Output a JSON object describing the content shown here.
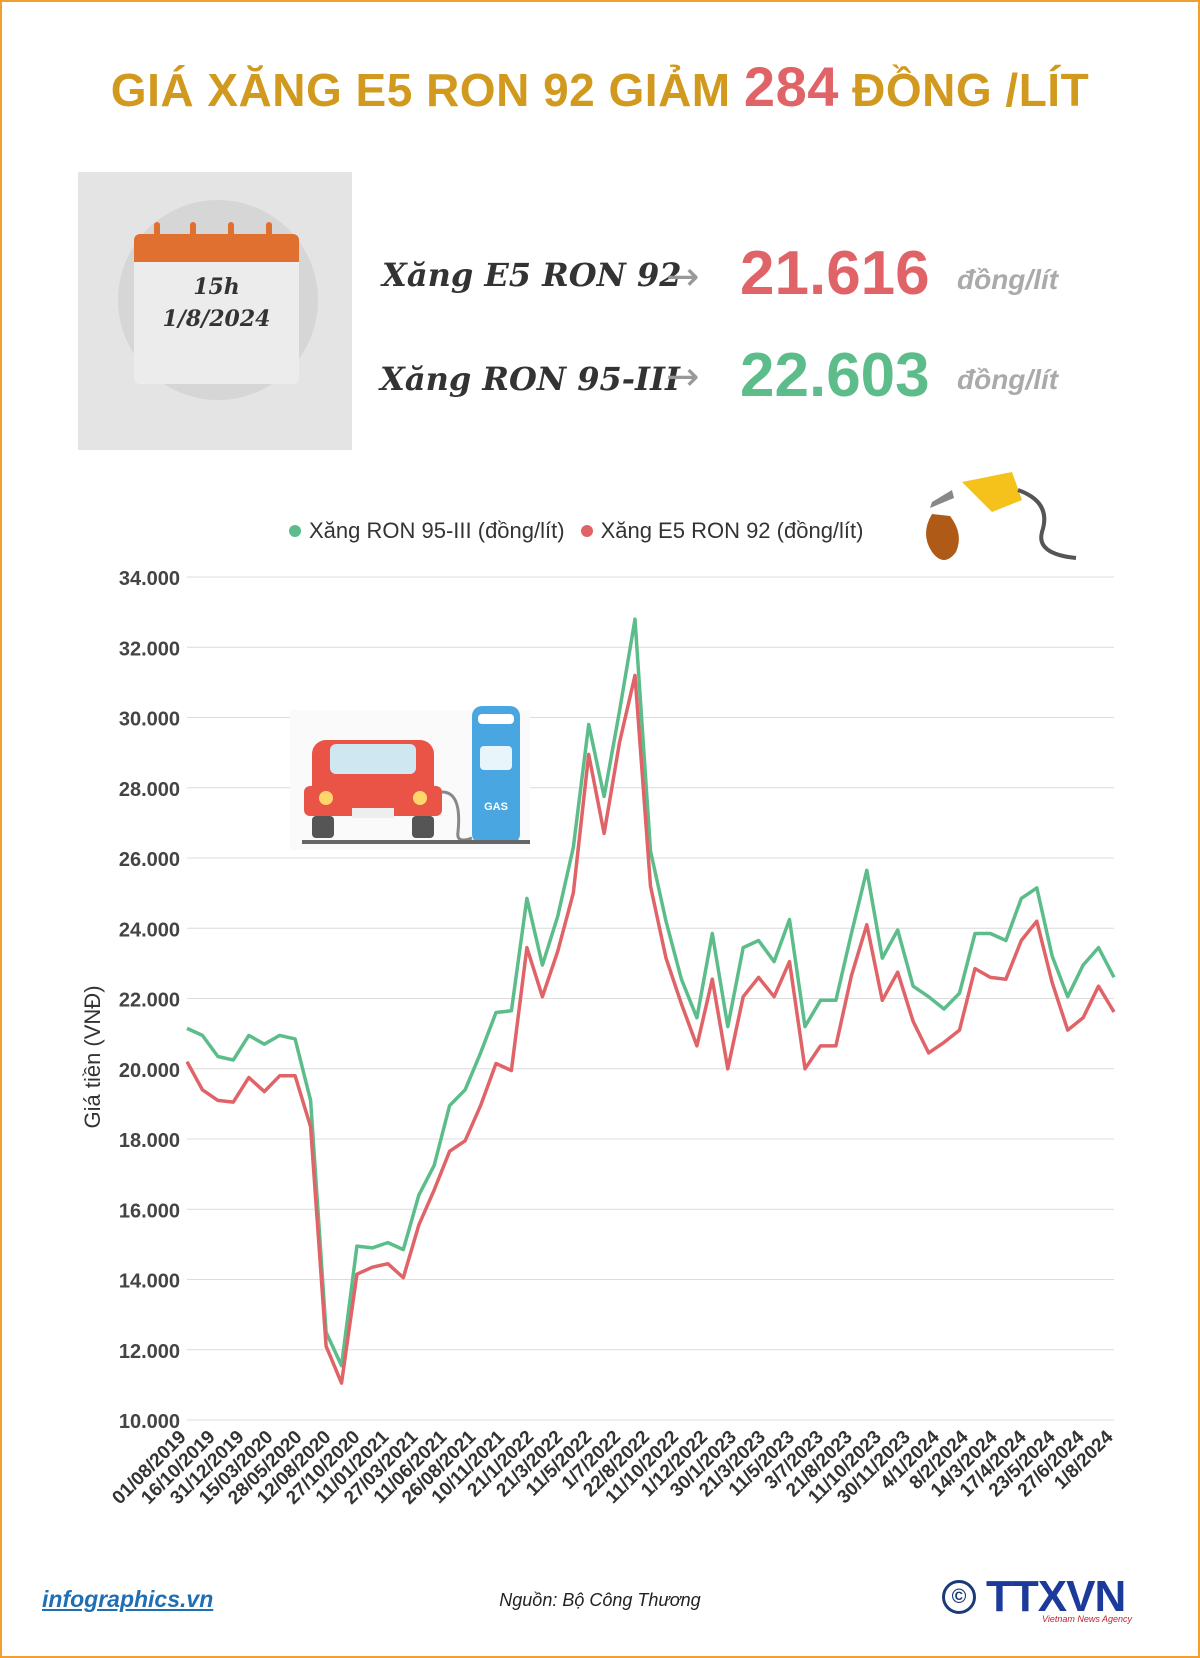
{
  "headline": {
    "prefix": "GIÁ XĂNG E5 RON 92 GIẢM",
    "amount": "284",
    "suffix": "ĐỒNG /LÍT"
  },
  "calendar": {
    "time": "15h",
    "date": "1/8/2024"
  },
  "prices": [
    {
      "label": "Xăng E5 RON 92",
      "value": "21.616",
      "unit": "đồng/lít",
      "color": "#e06368"
    },
    {
      "label": "Xăng RON 95-III",
      "value": "22.603",
      "unit": "đồng/lít",
      "color": "#5cbd8a"
    }
  ],
  "footer": {
    "site": "infographics.vn",
    "source": "Nguồn: Bộ Công Thương",
    "copyright": "©",
    "agency": "TTXVN",
    "agency_sub": "Vietnam News Agency"
  },
  "chart_data": {
    "type": "line",
    "ylabel": "Giá tiền (VNĐ)",
    "xlabel": "",
    "ylim": [
      10000,
      34000
    ],
    "yticks": [
      "10.000",
      "12.000",
      "14.000",
      "16.000",
      "18.000",
      "20.000",
      "22.000",
      "24.000",
      "26.000",
      "28.000",
      "30.000",
      "32.000",
      "34.000"
    ],
    "xticks": [
      "01/08/2019",
      "16/10/2019",
      "31/12/2019",
      "15/03/2020",
      "28/05/2020",
      "12/08/2020",
      "27/10/2020",
      "11/01/2021",
      "27/03/2021",
      "11/06/2021",
      "26/08/2021",
      "10/11/2021",
      "21/1/2022",
      "21/3/2022",
      "11/5/2022",
      "1/7/2022",
      "22/8/2022",
      "11/10/2022",
      "1/12/2022",
      "30/1/2023",
      "21/3/2023",
      "11/5/2023",
      "3/7/2023",
      "21/8/2023",
      "11/10/2023",
      "30/11/2023",
      "4/1/2024",
      "8/2/2024",
      "14/3/2024",
      "17/4/2024",
      "23/5/2024",
      "27/6/2024",
      "1/8/2024"
    ],
    "grid": true,
    "legend_position": "top",
    "series": [
      {
        "name": "Xăng RON 95-III (đồng/lít)",
        "color": "#5cbd8a",
        "values": [
          21150,
          20950,
          20350,
          20250,
          20950,
          20700,
          20950,
          20850,
          19100,
          12500,
          11550,
          14950,
          14900,
          15050,
          14850,
          16400,
          17250,
          18950,
          19400,
          20450,
          21600,
          21650,
          24850,
          22950,
          24350,
          26300,
          29800,
          27750,
          30200,
          32800,
          26200,
          24200,
          22550,
          21450,
          23850,
          21200,
          23450,
          23650,
          23050,
          24250,
          21200,
          21950,
          21950,
          23850,
          25650,
          23150,
          23950,
          22350,
          22050,
          21700,
          22150,
          23850,
          23850,
          23650,
          24850,
          25150,
          23200,
          22050,
          22950,
          23450,
          22603
        ]
      },
      {
        "name": "Xăng E5 RON 92 (đồng/lít)",
        "color": "#e06368",
        "values": [
          20200,
          19400,
          19100,
          19050,
          19750,
          19350,
          19800,
          19800,
          18350,
          12100,
          11050,
          14150,
          14350,
          14450,
          14050,
          15550,
          16550,
          17650,
          17950,
          18950,
          20150,
          19950,
          23450,
          22050,
          23350,
          25000,
          28950,
          26700,
          29300,
          31200,
          25200,
          23150,
          21850,
          20650,
          22550,
          20000,
          22050,
          22600,
          22050,
          23050,
          20000,
          20650,
          20650,
          22650,
          24100,
          21950,
          22750,
          21350,
          20450,
          20750,
          21100,
          22850,
          22600,
          22550,
          23650,
          24200,
          22450,
          21100,
          21450,
          22350,
          21616
        ]
      }
    ]
  }
}
